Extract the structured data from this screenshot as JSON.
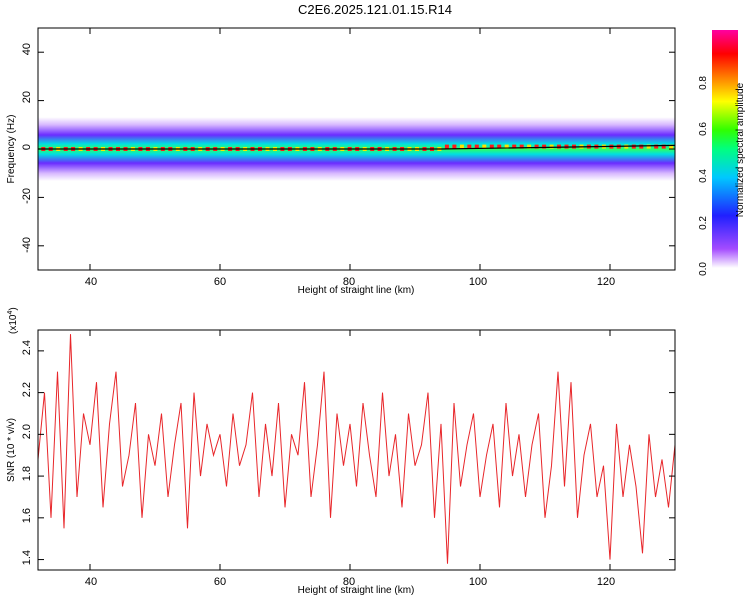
{
  "title": "C2E6.2025.121.01.15.R14",
  "colors": {
    "snr_line": "#e8262a",
    "ridge_line": "#000000",
    "axis": "#000000",
    "background": "#ffffff"
  },
  "chart_data": [
    {
      "type": "heatmap",
      "xlabel": "Height of straight line (km)",
      "ylabel": "Frequency (Hz)",
      "xlim": [
        32,
        130
      ],
      "ylim": [
        -50,
        50
      ],
      "x_ticks": [
        "40",
        "60",
        "80",
        "100",
        "120"
      ],
      "y_ticks": [
        "40",
        "20",
        "0",
        "-20",
        "-40"
      ],
      "colorbar": {
        "label": "Normalized spectral amplitude",
        "range": [
          0,
          1
        ],
        "ticks": [
          "0.0",
          "0.2",
          "0.4",
          "0.6",
          "0.8"
        ],
        "colormap": [
          "#ffffff",
          "#a44cff",
          "#2020ff",
          "#00c8ff",
          "#00ff80",
          "#30ff00",
          "#ffff00",
          "#ff8000",
          "#ff0000",
          "#ff00a0"
        ]
      },
      "ridge_line": {
        "x": [
          32,
          94,
          130
        ],
        "y": [
          0,
          0,
          1.5
        ]
      },
      "band": {
        "center_hz": 0,
        "half_width_hz": 3
      }
    },
    {
      "type": "line",
      "xlabel": "Height of straight line (km)",
      "ylabel": "SNR (10 * v/v)",
      "y_multiplier": "(x10",
      "y_multiplier_exp": "4",
      "y_multiplier_close": ")",
      "xlim": [
        32,
        130
      ],
      "ylim": [
        1.35,
        2.5
      ],
      "x_ticks": [
        "40",
        "60",
        "80",
        "100",
        "120"
      ],
      "y_ticks": [
        "2.4",
        "2.2",
        "2.0",
        "1.8",
        "1.6",
        "1.4"
      ],
      "series": [
        {
          "x": [
            32,
            33,
            34,
            35,
            36,
            37,
            38,
            39,
            40,
            41,
            42,
            43,
            44,
            45,
            46,
            47,
            48,
            49,
            50,
            51,
            52,
            53,
            54,
            55,
            56,
            57,
            58,
            59,
            60,
            61,
            62,
            63,
            64,
            65,
            66,
            67,
            68,
            69,
            70,
            71,
            72,
            73,
            74,
            75,
            76,
            77,
            78,
            79,
            80,
            81,
            82,
            83,
            84,
            85,
            86,
            87,
            88,
            89,
            90,
            91,
            92,
            93,
            94,
            95,
            96,
            97,
            98,
            99,
            100,
            101,
            102,
            103,
            104,
            105,
            106,
            107,
            108,
            109,
            110,
            111,
            112,
            113,
            114,
            115,
            116,
            117,
            118,
            119,
            120,
            121,
            122,
            123,
            124,
            125,
            126,
            127,
            128,
            129,
            130
          ],
          "y": [
            1.88,
            2.2,
            1.6,
            2.3,
            1.55,
            2.48,
            1.7,
            2.1,
            1.95,
            2.25,
            1.65,
            2.05,
            2.3,
            1.75,
            1.9,
            2.15,
            1.6,
            2.0,
            1.85,
            2.1,
            1.7,
            1.95,
            2.15,
            1.55,
            2.2,
            1.8,
            2.05,
            1.9,
            2.0,
            1.75,
            2.1,
            1.85,
            1.95,
            2.2,
            1.7,
            2.05,
            1.8,
            2.15,
            1.65,
            2.0,
            1.9,
            2.25,
            1.7,
            1.95,
            2.3,
            1.6,
            2.1,
            1.85,
            2.05,
            1.75,
            2.15,
            1.9,
            1.7,
            2.2,
            1.8,
            2.0,
            1.65,
            2.1,
            1.85,
            1.95,
            2.2,
            1.6,
            2.05,
            1.38,
            2.15,
            1.75,
            1.95,
            2.1,
            1.7,
            1.9,
            2.05,
            1.65,
            2.15,
            1.8,
            2.0,
            1.7,
            1.95,
            2.1,
            1.6,
            1.85,
            2.3,
            1.75,
            2.25,
            1.6,
            1.9,
            2.05,
            1.7,
            1.85,
            1.4,
            2.05,
            1.7,
            1.95,
            1.75,
            1.43,
            2.0,
            1.7,
            1.88,
            1.65,
            1.95
          ]
        }
      ]
    }
  ]
}
